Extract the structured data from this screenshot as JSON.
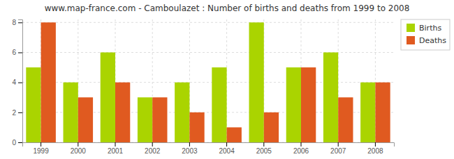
{
  "chart_data": {
    "type": "bar",
    "title": "www.map-france.com - Camboulazet : Number of births and deaths from 1999 to 2008",
    "categories": [
      "1999",
      "2000",
      "2001",
      "2002",
      "2003",
      "2004",
      "2005",
      "2006",
      "2007",
      "2008"
    ],
    "series": [
      {
        "name": "Births",
        "color": "#aad400",
        "values": [
          5,
          4,
          6,
          3,
          4,
          5,
          8,
          5,
          6,
          4
        ]
      },
      {
        "name": "Deaths",
        "color": "#e05a20",
        "values": [
          8,
          3,
          4,
          3,
          2,
          1,
          2,
          5,
          3,
          4
        ]
      }
    ],
    "ylim": [
      0,
      8.2
    ],
    "yticks": [
      0,
      2,
      4,
      6,
      8
    ],
    "grid": true,
    "legend": "upper right"
  }
}
